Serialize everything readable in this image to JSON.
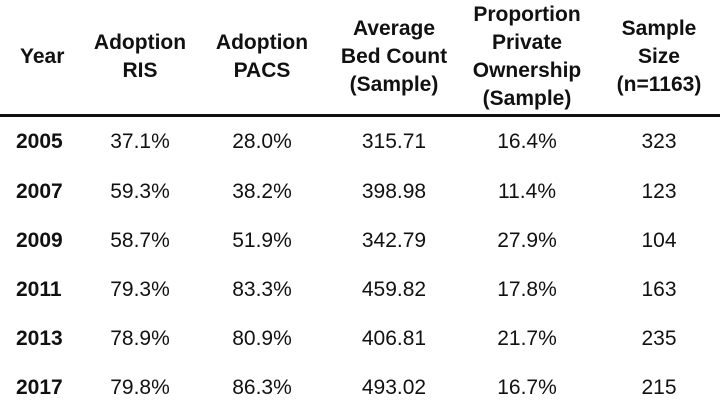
{
  "table": {
    "headers": {
      "year": "Year",
      "ris": "Adoption\nRIS",
      "pacs": "Adoption\nPACS",
      "bed": "Average\nBed Count\n(Sample)",
      "private": "Proportion\nPrivate\nOwnership\n(Sample)",
      "size": "Sample\nSize\n(n=1163)"
    },
    "rows": [
      {
        "year": "2005",
        "ris": "37.1%",
        "pacs": "28.0%",
        "bed": "315.71",
        "private": "16.4%",
        "size": "323"
      },
      {
        "year": "2007",
        "ris": "59.3%",
        "pacs": "38.2%",
        "bed": "398.98",
        "private": "11.4%",
        "size": "123"
      },
      {
        "year": "2009",
        "ris": "58.7%",
        "pacs": "51.9%",
        "bed": "342.79",
        "private": "27.9%",
        "size": "104"
      },
      {
        "year": "2011",
        "ris": "79.3%",
        "pacs": "83.3%",
        "bed": "459.82",
        "private": "17.8%",
        "size": "163"
      },
      {
        "year": "2013",
        "ris": "78.9%",
        "pacs": "80.9%",
        "bed": "406.81",
        "private": "21.7%",
        "size": "235"
      },
      {
        "year": "2017",
        "ris": "79.8%",
        "pacs": "86.3%",
        "bed": "493.02",
        "private": "16.7%",
        "size": "215"
      }
    ]
  }
}
